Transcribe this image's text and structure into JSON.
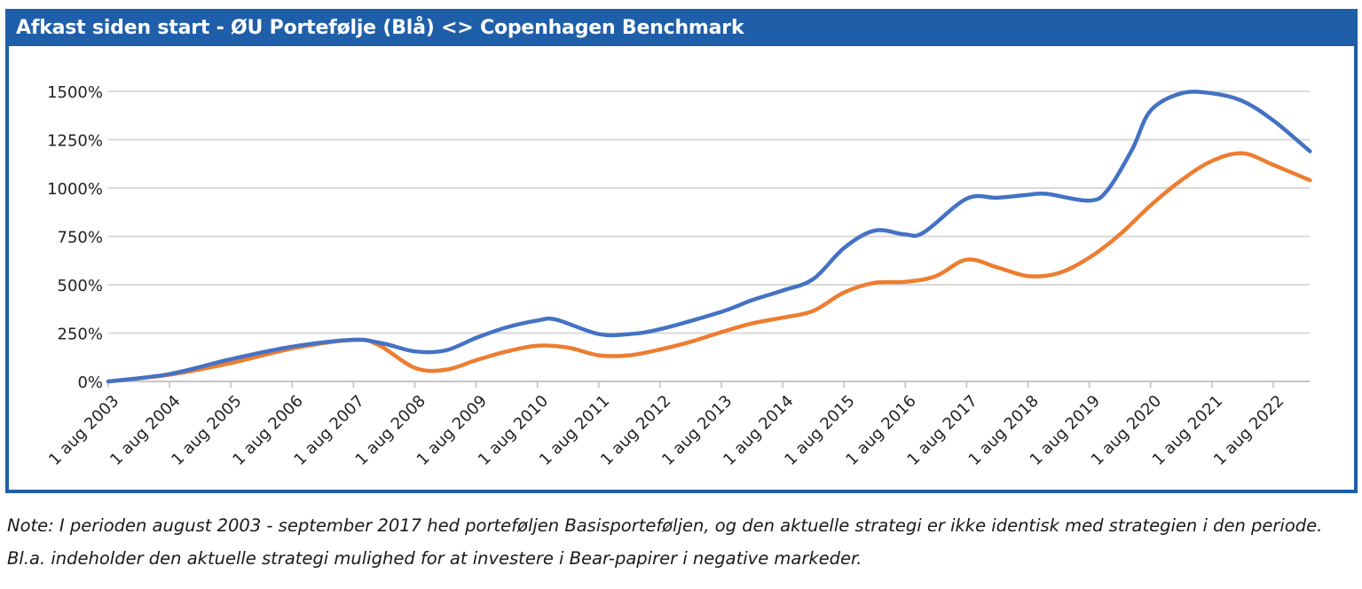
{
  "chart_title": "Afkast siden start - ØU Portefølje (Blå) <> Copenhagen Benchmark",
  "note": "Note: I perioden august 2003 - september 2017 hed porteføljen Basisporteføljen, og den aktuelle strategi er ikke identisk med strategien i den periode. Bl.a. indeholder den aktuelle strategi mulighed for at investere i Bear-papirer i negative markeder.",
  "colors": {
    "header": "#1f5ea8",
    "series_blue": "#4472c4",
    "series_orange": "#ed7d31",
    "grid": "#d9d9d9"
  },
  "chart_data": {
    "type": "line",
    "ylim": [
      0,
      1500
    ],
    "yticks": [
      "0%",
      "250%",
      "500%",
      "750%",
      "1000%",
      "1250%",
      "1500%"
    ],
    "ytick_values": [
      0,
      250,
      500,
      750,
      1000,
      1250,
      1500
    ],
    "categories": [
      "1 aug 2003",
      "1 aug 2004",
      "1 aug 2005",
      "1 aug 2006",
      "1 aug 2007",
      "1 aug 2008",
      "1 aug 2009",
      "1 aug 2010",
      "1 aug 2011",
      "1 aug 2012",
      "1 aug 2013",
      "1 aug 2014",
      "1 aug 2015",
      "1 aug 2016",
      "1 aug 2017",
      "1 aug 2018",
      "1 aug 2019",
      "1 aug 2020",
      "1 aug 2021",
      "1 aug 2022"
    ],
    "x_end": 19.6,
    "grid": true,
    "legend": "none",
    "series": [
      {
        "color": "#4472c4",
        "points": [
          [
            0,
            0
          ],
          [
            1,
            38
          ],
          [
            2,
            115
          ],
          [
            3,
            180
          ],
          [
            4,
            215
          ],
          [
            4.5,
            195
          ],
          [
            5,
            155
          ],
          [
            5.5,
            160
          ],
          [
            6,
            225
          ],
          [
            6.5,
            280
          ],
          [
            7,
            315
          ],
          [
            7.3,
            320
          ],
          [
            8,
            245
          ],
          [
            8.5,
            245
          ],
          [
            9,
            270
          ],
          [
            10,
            360
          ],
          [
            10.5,
            420
          ],
          [
            11,
            470
          ],
          [
            11.5,
            530
          ],
          [
            12,
            690
          ],
          [
            12.5,
            780
          ],
          [
            13,
            760
          ],
          [
            13.3,
            770
          ],
          [
            14,
            945
          ],
          [
            14.5,
            950
          ],
          [
            15,
            965
          ],
          [
            15.3,
            970
          ],
          [
            16,
            935
          ],
          [
            16.3,
            990
          ],
          [
            16.7,
            1200
          ],
          [
            17,
            1400
          ],
          [
            17.5,
            1490
          ],
          [
            18,
            1490
          ],
          [
            18.5,
            1450
          ],
          [
            19,
            1350
          ],
          [
            19.6,
            1190
          ]
        ]
      },
      {
        "color": "#ed7d31",
        "points": [
          [
            0,
            0
          ],
          [
            1,
            35
          ],
          [
            2,
            95
          ],
          [
            3,
            170
          ],
          [
            4,
            215
          ],
          [
            4.4,
            190
          ],
          [
            5,
            70
          ],
          [
            5.5,
            60
          ],
          [
            6,
            110
          ],
          [
            6.5,
            155
          ],
          [
            7,
            185
          ],
          [
            7.5,
            175
          ],
          [
            8,
            135
          ],
          [
            8.5,
            135
          ],
          [
            9,
            165
          ],
          [
            9.5,
            205
          ],
          [
            10,
            255
          ],
          [
            10.5,
            300
          ],
          [
            11,
            330
          ],
          [
            11.5,
            365
          ],
          [
            12,
            460
          ],
          [
            12.5,
            510
          ],
          [
            13,
            515
          ],
          [
            13.5,
            545
          ],
          [
            14,
            630
          ],
          [
            14.5,
            590
          ],
          [
            15,
            545
          ],
          [
            15.5,
            560
          ],
          [
            16,
            640
          ],
          [
            16.5,
            760
          ],
          [
            17,
            910
          ],
          [
            17.5,
            1040
          ],
          [
            18,
            1140
          ],
          [
            18.5,
            1180
          ],
          [
            19,
            1120
          ],
          [
            19.6,
            1040
          ]
        ]
      }
    ]
  }
}
